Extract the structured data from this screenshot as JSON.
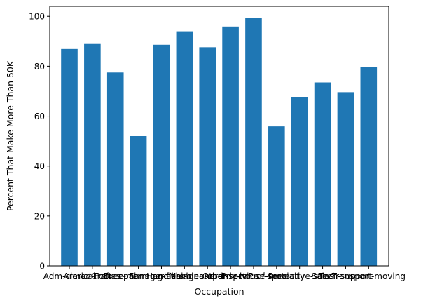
{
  "chart_data": {
    "type": "bar",
    "xlabel": "Occupation",
    "ylabel": "Percent That Make More Than 50K",
    "ylim": [
      0,
      104
    ],
    "yticks": [
      0,
      20,
      40,
      60,
      80,
      100
    ],
    "grid": false,
    "bar_color": "#1f77b4",
    "categories": [
      "Adm-clerical",
      "Armed-Forces",
      "Craft-repair",
      "Exec-managerial",
      "Farming-fishing",
      "Handlers-cleaners",
      "Machine-op-inspct",
      "Other-service",
      "Priv-house-serv",
      "Prof-specialty",
      "Protective-serv",
      "Sales",
      "Tech-support",
      "Transport-moving"
    ],
    "values": [
      86.9,
      88.9,
      77.5,
      52.0,
      88.6,
      94.0,
      87.6,
      95.9,
      99.3,
      55.9,
      67.6,
      73.5,
      69.6,
      79.8
    ]
  }
}
